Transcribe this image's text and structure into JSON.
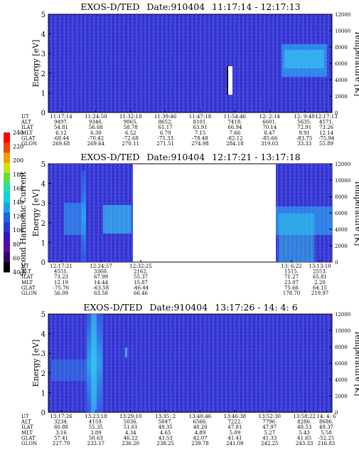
{
  "colorbar": {
    "label": "Second Harmonic Current",
    "ticks": [
      "40",
      "60",
      "80",
      "100",
      "120",
      "140",
      "160",
      "180",
      "200",
      "220",
      "240"
    ],
    "colors": [
      "#000000",
      "#3a006a",
      "#5a0aa0",
      "#3414c0",
      "#2038d8",
      "#1e60e8",
      "#1aa0f0",
      "#10d0e0",
      "#20e0a0",
      "#60e040",
      "#d0e010",
      "#f0a000",
      "#ff4000",
      "#ff0000"
    ]
  },
  "chart_data": [
    {
      "type": "heatmap",
      "title": "EXOS-D/TED",
      "date": "Date:910404",
      "time_range": "11:17:14 - 12:17:13",
      "ylabel": "Energy [eV]",
      "ylim": [
        0,
        5
      ],
      "y_ticks": [
        "0",
        "1",
        "2",
        "3",
        "4",
        "5"
      ],
      "ylabel_right": "Temperature [K]",
      "y2lim": [
        0,
        12000
      ],
      "y2_ticks": [
        "0",
        "2000",
        "4000",
        "6000",
        "8000",
        "10000",
        "12000"
      ],
      "row_labels": [
        "UT",
        "ALT",
        "ILAT",
        "MLT",
        "GLAT",
        "GLON"
      ],
      "columns": [
        {
          "UT": "11:17:14",
          "ALT": "9497.",
          "ILAT": "54.81",
          "MLT": "6.12",
          "GLAT": "-68.44",
          "GLON": "269.68"
        },
        {
          "UT": "11:24:50",
          "ALT": "9346.",
          "ILAT": "56.68",
          "MLT": "6.30",
          "GLAT": "-70.42",
          "GLON": "269.64"
        },
        {
          "UT": "11:32:18",
          "ALT": "9065.",
          "ILAT": "58.78",
          "MLT": "6.52",
          "GLAT": "-72.68",
          "GLON": "270.11"
        },
        {
          "UT": "11:39:46",
          "ALT": "8652.",
          "ILAT": "61.17",
          "MLT": "6.79",
          "GLAT": "-75.33",
          "GLON": "271.51"
        },
        {
          "UT": "11:47:18",
          "ALT": "8101.",
          "ILAT": "63.91",
          "MLT": "7.15",
          "GLAT": "-78.48",
          "GLON": "274.98"
        },
        {
          "UT": "11:54:46",
          "ALT": "7418.",
          "ILAT": "66.94",
          "MLT": "7.66",
          "GLAT": "-82.12",
          "GLON": "284.18"
        },
        {
          "UT": "12: 2:14",
          "ALT": "6601.",
          "ILAT": "70.14",
          "MLT": "8.47",
          "GLAT": "-85.66",
          "GLON": "319.03"
        },
        {
          "UT": "12: 9:49",
          "ALT": "5635.",
          "ILAT": "72.91",
          "MLT": "9.91",
          "GLAT": "-83.75",
          "GLON": "33.33"
        },
        {
          "UT": "12:17:13",
          "ALT": "4571.",
          "ILAT": "73.26",
          "MLT": "12.14",
          "GLAT": "-75.94",
          "GLON": "55.89"
        }
      ]
    },
    {
      "type": "heatmap",
      "title": "EXOS-D/TED",
      "date": "Date:910404",
      "time_range": "12:17:21 - 13:17:18",
      "ylabel": "Energy [eV]",
      "ylim": [
        0,
        5
      ],
      "y_ticks": [
        "0",
        "1",
        "2",
        "3",
        "4",
        "5"
      ],
      "ylabel_right": "Temperature [K]",
      "y2lim": [
        0,
        12000
      ],
      "y2_ticks": [
        "0",
        "2000",
        "4000",
        "6000",
        "8000",
        "10000",
        "12000"
      ],
      "row_labels": [
        "UT",
        "ALT",
        "ILAT",
        "MLT",
        "GLAT",
        "GLON"
      ],
      "columns": [
        {
          "UT": "12:17:21",
          "ALT": "4551.",
          "ILAT": "73.23",
          "MLT": "12.19",
          "GLAT": "-75.76",
          "GLON": "56.09"
        },
        {
          "UT": "12:24:57",
          "ALT": "3360.",
          "ILAT": "67.99",
          "MLT": "14.44",
          "GLAT": "-63.58",
          "GLON": "63.58"
        },
        {
          "UT": "12:32:25",
          "ALT": "2162.",
          "ILAT": "55.37",
          "MLT": "15.87",
          "GLAT": "-46.44",
          "GLON": "66.46"
        },
        {
          "UT": "13: 6:22",
          "ALT": "1515.",
          "ILAT": "71.27",
          "MLT": "23.07",
          "GLAT": "75.66",
          "GLON": "178.70"
        },
        {
          "UT": "13:13:10",
          "ALT": "2553.",
          "ILAT": "65.81",
          "MLT": "2.20",
          "GLAT": "64.15",
          "GLON": "219.97"
        }
      ]
    },
    {
      "type": "heatmap",
      "title": "EXOS-D/TED",
      "date": "Date:910404",
      "time_range": "13:17:26 - 14: 4: 6",
      "ylabel": "Energy [eV]",
      "ylim": [
        0,
        5
      ],
      "y_ticks": [
        "0",
        "1",
        "2",
        "3",
        "4",
        "5"
      ],
      "ylabel_right": "Temperature [K]",
      "y2lim": [
        0,
        12000
      ],
      "y2_ticks": [
        "0",
        "2000",
        "4000",
        "6000",
        "8000",
        "10000",
        "12000"
      ],
      "row_labels": [
        "UT",
        "ALT",
        "ILAT",
        "MLT",
        "GLAT",
        "GLON"
      ],
      "columns": [
        {
          "UT": "13:17:26",
          "ALT": "3234.",
          "ILAT": "60.88",
          "MLT": "3.16",
          "GLAT": "57.41",
          "GLON": "227.79"
        },
        {
          "UT": "13:23:18",
          "ALT": "4159.",
          "ILAT": "55.35",
          "MLT": "3.89",
          "GLAT": "50.63",
          "GLON": "233.17"
        },
        {
          "UT": "13:29:10",
          "ALT": "5036.",
          "ILAT": "51.61",
          "MLT": "4.34",
          "GLAT": "46.22",
          "GLON": "236.20"
        },
        {
          "UT": "13:35: 2",
          "ALT": "5847.",
          "ILAT": "49.35",
          "MLT": "4.65",
          "GLAT": "43.53",
          "GLON": "238.25"
        },
        {
          "UT": "13:40:46",
          "ALT": "6566.",
          "ILAT": "48.20",
          "MLT": "4.89",
          "GLAT": "42.07",
          "GLON": "239.78"
        },
        {
          "UT": "13:46:38",
          "ALT": "7222.",
          "ILAT": "47.81",
          "MLT": "5.09",
          "GLAT": "41.41",
          "GLON": "241.09"
        },
        {
          "UT": "13:52:30",
          "ALT": "7796.",
          "ILAT": "47.97",
          "MLT": "5.27",
          "GLAT": "41.33",
          "GLON": "242.25"
        },
        {
          "UT": "13:58:22",
          "ALT": "8286.",
          "ILAT": "48.53",
          "MLT": "5.43",
          "GLAT": "41.65",
          "GLON": "243.33"
        },
        {
          "UT": "14: 4: 6",
          "ALT": "8686.",
          "ILAT": "49.37",
          "MLT": "5.58",
          "GLAT": "-52.25",
          "GLON": "216.83"
        }
      ]
    }
  ]
}
